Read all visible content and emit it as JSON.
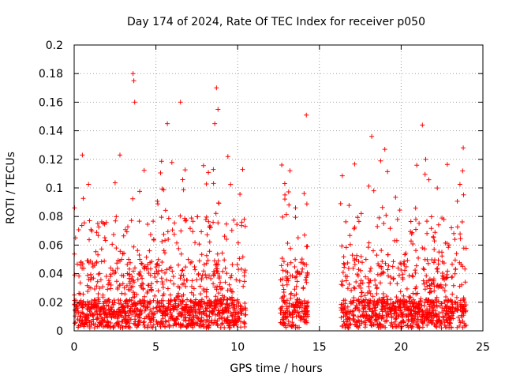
{
  "chart_data": {
    "type": "scatter",
    "title": "Day 174 of 2024, Rate Of TEC Index for receiver p050",
    "xlabel": "GPS time / hours",
    "ylabel": "ROTI / TECUs",
    "xlim": [
      0,
      25
    ],
    "ylim": [
      0,
      0.2
    ],
    "xticks": [
      0,
      5,
      10,
      15,
      20,
      25
    ],
    "xtick_labels": [
      "0",
      "5",
      "10",
      "15",
      "20",
      "25"
    ],
    "yticks": [
      0,
      0.02,
      0.04,
      0.06,
      0.08,
      0.1,
      0.12,
      0.14,
      0.16,
      0.18,
      0.2
    ],
    "ytick_labels": [
      "0",
      "0.02",
      "0.04",
      "0.06",
      "0.08",
      "0.1",
      "0.12",
      "0.14",
      "0.16",
      "0.18",
      "0.2"
    ],
    "grid": true,
    "marker": "+",
    "marker_color": "#ff0000",
    "data_segments": [
      {
        "start": 0.0,
        "end": 10.5
      },
      {
        "start": 12.6,
        "end": 14.3
      },
      {
        "start": 16.3,
        "end": 24.0
      }
    ],
    "notable_points": [
      {
        "x": 3.6,
        "y": 0.18
      },
      {
        "x": 3.65,
        "y": 0.175
      },
      {
        "x": 3.7,
        "y": 0.16
      },
      {
        "x": 6.5,
        "y": 0.16
      },
      {
        "x": 5.7,
        "y": 0.145
      },
      {
        "x": 8.7,
        "y": 0.17
      },
      {
        "x": 8.8,
        "y": 0.155
      },
      {
        "x": 8.6,
        "y": 0.145
      },
      {
        "x": 14.2,
        "y": 0.151
      },
      {
        "x": 21.3,
        "y": 0.144
      },
      {
        "x": 18.2,
        "y": 0.136
      },
      {
        "x": 19.0,
        "y": 0.127
      },
      {
        "x": 23.8,
        "y": 0.128
      },
      {
        "x": 12.7,
        "y": 0.116
      },
      {
        "x": 13.2,
        "y": 0.112
      },
      {
        "x": 0.5,
        "y": 0.123
      },
      {
        "x": 2.8,
        "y": 0.123
      },
      {
        "x": 9.4,
        "y": 0.122
      },
      {
        "x": 21.5,
        "y": 0.12
      },
      {
        "x": 16.3,
        "y": 0.089
      },
      {
        "x": 10.4,
        "y": 0.078
      }
    ]
  }
}
